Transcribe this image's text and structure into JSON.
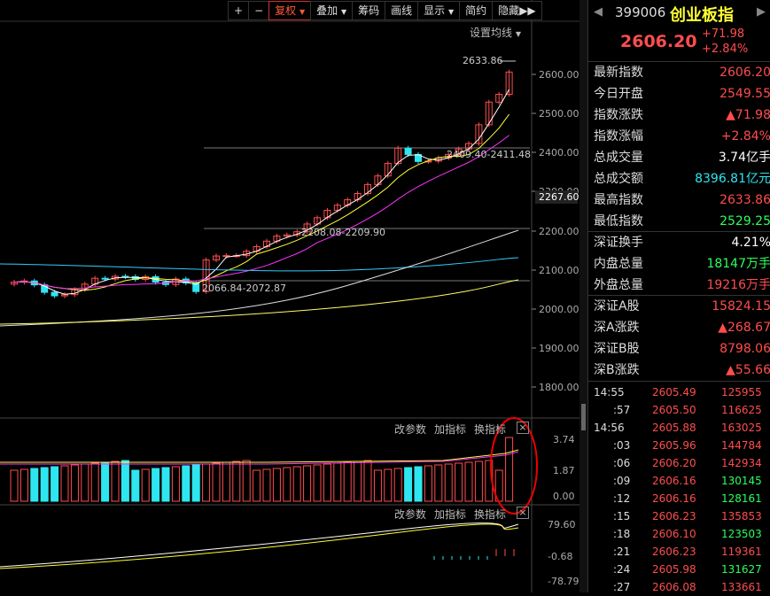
{
  "toolbar": {
    "zoom_in": "+",
    "zoom_out": "−",
    "fuquan": "复权",
    "diejia": "叠加",
    "chouma": "筹码",
    "huaxian": "画线",
    "xianshi": "显示",
    "jianyue": "简约",
    "yincang": "隐藏"
  },
  "main": {
    "ma_setting": "设置均线",
    "y_ticks": [
      "2600.00",
      "2500.00",
      "2400.00",
      "2300.00",
      "2200.00",
      "2100.00",
      "2000.00",
      "1900.00",
      "1800.00"
    ],
    "current_price_tag": "2267.60",
    "annotations": [
      "2633.86",
      "2409.40-2411.48",
      "2208.08-2209.90",
      "2066.84-2072.87"
    ]
  },
  "sub1": {
    "btn_params": "改参数",
    "btn_add": "加指标",
    "btn_switch": "换指标",
    "ticks": [
      "3.74",
      "1.87",
      "0.00"
    ]
  },
  "sub2": {
    "btn_params": "改参数",
    "btn_add": "加指标",
    "btn_switch": "换指标",
    "ticks": [
      "79.60",
      "-0.68",
      "-78.79"
    ]
  },
  "colors": {
    "up": "#ff4d4d",
    "down": "#2ee6f0",
    "ma5": "#ffffff",
    "ma10": "#ffff33",
    "ma20": "#ff33ff",
    "ma60": "#33ccff"
  },
  "chart_data": {
    "type": "candlestick",
    "ohlc_close_approx": [
      2068,
      2071,
      2061,
      2042,
      2033,
      2036,
      2049,
      2063,
      2078,
      2076,
      2083,
      2082,
      2075,
      2082,
      2068,
      2062,
      2076,
      2066,
      2044,
      2125,
      2135,
      2136,
      2136,
      2147,
      2159,
      2173,
      2186,
      2189,
      2197,
      2217,
      2233,
      2252,
      2265,
      2279,
      2295,
      2318,
      2340,
      2372,
      2411,
      2395,
      2377,
      2378,
      2386,
      2395,
      2409,
      2423,
      2471,
      2529,
      2549,
      2606
    ]
  },
  "panel": {
    "code": "399006",
    "name": "创业板指",
    "price": "2606.20",
    "change": "+71.98",
    "change_pct": "+2.84%",
    "stats": [
      {
        "label": "最新指数",
        "value": "2606.20",
        "color": "red"
      },
      {
        "label": "今日开盘",
        "value": "2549.55",
        "color": "red"
      },
      {
        "label": "指数涨跌",
        "value": "▲71.98",
        "color": "red"
      },
      {
        "label": "指数涨幅",
        "value": "+2.84%",
        "color": "red"
      },
      {
        "label": "总成交量",
        "value": "3.74亿手",
        "color": "wht"
      },
      {
        "label": "总成交额",
        "value": "8396.81亿元",
        "color": "cyan"
      },
      {
        "label": "最高指数",
        "value": "2633.86",
        "color": "red"
      },
      {
        "label": "最低指数",
        "value": "2529.25",
        "color": "grn"
      },
      {
        "label": "深证换手",
        "value": "4.21%",
        "color": "wht"
      },
      {
        "label": "内盘总量",
        "value": "18147万手",
        "color": "grn"
      },
      {
        "label": "外盘总量",
        "value": "19216万手",
        "color": "red"
      },
      {
        "label": "深证A股",
        "value": "15824.15",
        "color": "red"
      },
      {
        "label": "深A涨跌",
        "value": "▲268.67",
        "color": "red"
      },
      {
        "label": "深证B股",
        "value": "8798.06",
        "color": "red"
      },
      {
        "label": "深B涨跌",
        "value": "▲55.66",
        "color": "red"
      }
    ],
    "ticks": [
      {
        "t": "14:55",
        "p": "2605.49",
        "v": "125955"
      },
      {
        "t": ":57",
        "p": "2605.50",
        "v": "116625"
      },
      {
        "t": "14:56",
        "p": "2605.88",
        "v": "163025"
      },
      {
        "t": ":03",
        "p": "2605.96",
        "v": "144784"
      },
      {
        "t": ":06",
        "p": "2606.20",
        "v": "142934"
      },
      {
        "t": ":09",
        "p": "2606.16",
        "v": "130145"
      },
      {
        "t": ":12",
        "p": "2606.16",
        "v": "128161"
      },
      {
        "t": ":15",
        "p": "2606.23",
        "v": "135853"
      },
      {
        "t": ":18",
        "p": "2606.10",
        "v": "123503"
      },
      {
        "t": ":21",
        "p": "2606.23",
        "v": "119361"
      },
      {
        "t": ":24",
        "p": "2605.98",
        "v": "131627"
      },
      {
        "t": ":27",
        "p": "2606.08",
        "v": "133661"
      }
    ]
  }
}
